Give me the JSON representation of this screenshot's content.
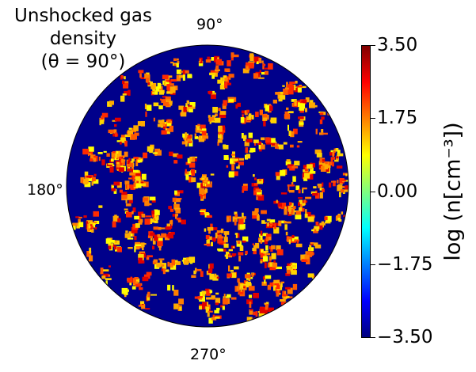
{
  "chart_data": {
    "type": "heatmap",
    "projection": "polar",
    "title": [
      "Unshocked gas",
      "density",
      "(θ = 90°)"
    ],
    "angle_labels": [
      "90°",
      "180°",
      "270°"
    ],
    "colorbar": {
      "label": "log (n[cm⁻³])",
      "ticks": [
        "3.50",
        "1.75",
        "0.00",
        "−1.75",
        "−3.50"
      ],
      "range": [
        -3.5,
        3.5
      ],
      "colormap": "jet"
    },
    "background_value": -3.5,
    "colors": {
      "background_disk": "#00008b",
      "clump_colors": [
        "#ff2a00",
        "#ff5a00",
        "#ff7f00",
        "#ffaa00",
        "#ffd400",
        "#ffff00",
        "#e00000"
      ]
    }
  }
}
